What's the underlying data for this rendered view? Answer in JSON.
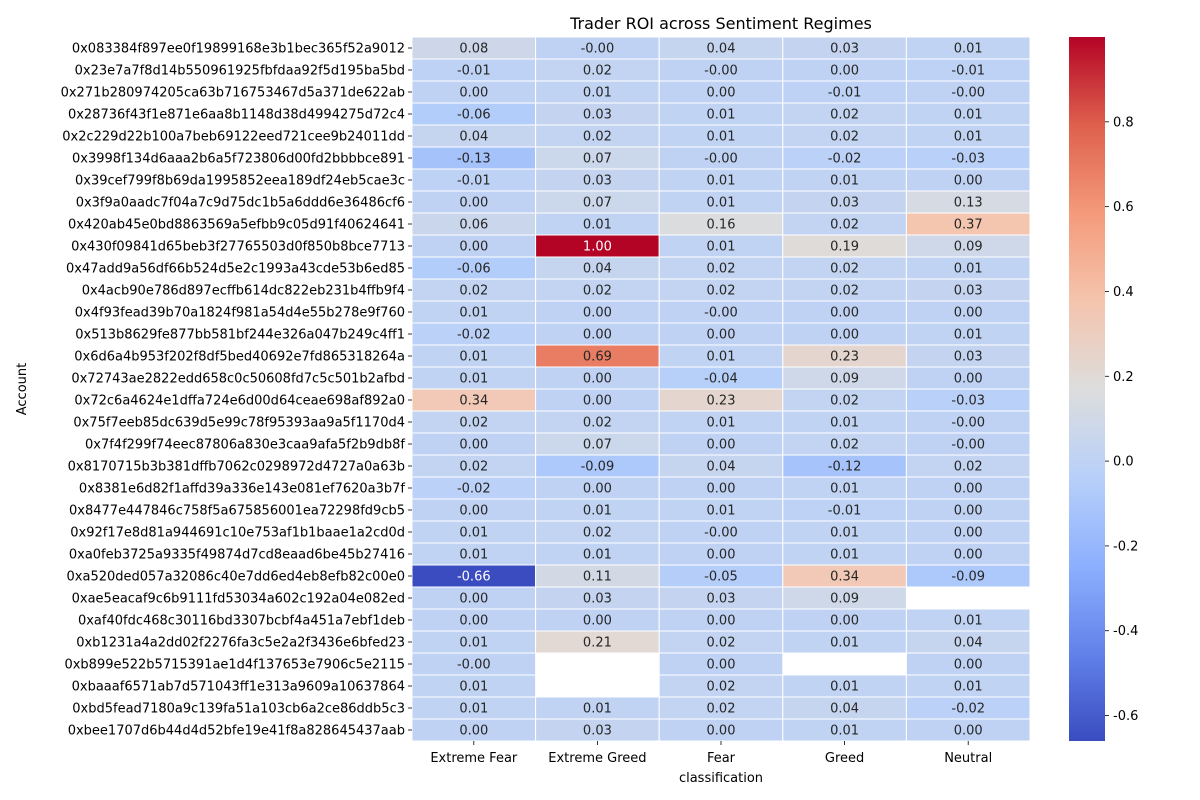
{
  "chart_data": {
    "type": "heatmap",
    "title": "Trader ROI across Sentiment Regimes",
    "xlabel": "classification",
    "ylabel": "Account",
    "colormap": "coolwarm",
    "color_range": [
      -0.66,
      1.0
    ],
    "colorbar_ticks": [
      "0.8",
      "0.6",
      "0.4",
      "0.2",
      "0.0",
      "-0.2",
      "-0.4",
      "-0.6"
    ],
    "colorbar_tick_values": [
      0.8,
      0.6,
      0.4,
      0.2,
      0.0,
      -0.2,
      -0.4,
      -0.6
    ],
    "columns": [
      "Extreme Fear",
      "Extreme Greed",
      "Fear",
      "Greed",
      "Neutral"
    ],
    "rows": [
      "0x083384f897ee0f19899168e3b1bec365f52a9012",
      "0x23e7a7f8d14b550961925fbfdaa92f5d195ba5bd",
      "0x271b280974205ca63b716753467d5a371de622ab",
      "0x28736f43f1e871e6aa8b1148d38d4994275d72c4",
      "0x2c229d22b100a7beb69122eed721cee9b24011dd",
      "0x3998f134d6aaa2b6a5f723806d00fd2bbbbce891",
      "0x39cef799f8b69da1995852eea189df24eb5cae3c",
      "0x3f9a0aadc7f04a7c9d75dc1b5a6ddd6e36486cf6",
      "0x420ab45e0bd8863569a5efbb9c05d91f40624641",
      "0x430f09841d65beb3f27765503d0f850b8bce7713",
      "0x47add9a56df66b524d5e2c1993a43cde53b6ed85",
      "0x4acb90e786d897ecffb614dc822eb231b4ffb9f4",
      "0x4f93fead39b70a1824f981a54d4e55b278e9f760",
      "0x513b8629fe877bb581bf244e326a047b249c4ff1",
      "0x6d6a4b953f202f8df5bed40692e7fd865318264a",
      "0x72743ae2822edd658c0c50608fd7c5c501b2afbd",
      "0x72c6a4624e1dffa724e6d00d64ceae698af892a0",
      "0x75f7eeb85dc639d5e99c78f95393aa9a5f1170d4",
      "0x7f4f299f74eec87806a830e3caa9afa5f2b9db8f",
      "0x8170715b3b381dffb7062c0298972d4727a0a63b",
      "0x8381e6d82f1affd39a336e143e081ef7620a3b7f",
      "0x8477e447846c758f5a675856001ea72298fd9cb5",
      "0x92f17e8d81a944691c10e753af1b1baae1a2cd0d",
      "0xa0feb3725a9335f49874d7cd8eaad6be45b27416",
      "0xa520ded057a32086c40e7dd6ed4eb8efb82c00e0",
      "0xae5eacaf9c6b9111fd53034a602c192a04e082ed",
      "0xaf40fdc468c30116bd3307bcbf4a451a7ebf1deb",
      "0xb1231a4a2dd02f2276fa3c5e2a2f3436e6bfed23",
      "0xb899e522b5715391ae1d4f137653e7906c5e2115",
      "0xbaaaf6571ab7d571043ff1e313a9609a10637864",
      "0xbd5fead7180a9c139fa51a103cb6a2ce86ddb5c3",
      "0xbee1707d6b44d4d52bfe19e41f8a828645437aab"
    ],
    "labels": [
      [
        "0.08",
        "-0.00",
        "0.04",
        "0.03",
        "0.01"
      ],
      [
        "-0.01",
        "0.02",
        "-0.00",
        "0.00",
        "-0.01"
      ],
      [
        "0.00",
        "0.01",
        "0.00",
        "-0.01",
        "-0.00"
      ],
      [
        "-0.06",
        "0.03",
        "0.01",
        "0.02",
        "0.01"
      ],
      [
        "0.04",
        "0.02",
        "0.01",
        "0.02",
        "0.01"
      ],
      [
        "-0.13",
        "0.07",
        "-0.00",
        "-0.02",
        "-0.03"
      ],
      [
        "-0.01",
        "0.03",
        "0.01",
        "0.01",
        "0.00"
      ],
      [
        "0.00",
        "0.07",
        "0.01",
        "0.03",
        "0.13"
      ],
      [
        "0.06",
        "0.01",
        "0.16",
        "0.02",
        "0.37"
      ],
      [
        "0.00",
        "1.00",
        "0.01",
        "0.19",
        "0.09"
      ],
      [
        "-0.06",
        "0.04",
        "0.02",
        "0.02",
        "0.01"
      ],
      [
        "0.02",
        "0.02",
        "0.02",
        "0.02",
        "0.03"
      ],
      [
        "0.01",
        "0.00",
        "-0.00",
        "0.00",
        "0.00"
      ],
      [
        "-0.02",
        "0.00",
        "0.00",
        "0.00",
        "0.01"
      ],
      [
        "0.01",
        "0.69",
        "0.01",
        "0.23",
        "0.03"
      ],
      [
        "0.01",
        "0.00",
        "-0.04",
        "0.09",
        "0.00"
      ],
      [
        "0.34",
        "0.00",
        "0.23",
        "0.02",
        "-0.03"
      ],
      [
        "0.02",
        "0.02",
        "0.01",
        "0.01",
        "-0.00"
      ],
      [
        "0.00",
        "0.07",
        "0.00",
        "0.02",
        "-0.00"
      ],
      [
        "0.02",
        "-0.09",
        "0.04",
        "-0.12",
        "0.02"
      ],
      [
        "-0.02",
        "0.00",
        "0.00",
        "0.01",
        "0.00"
      ],
      [
        "0.00",
        "0.01",
        "0.01",
        "-0.01",
        "0.00"
      ],
      [
        "0.01",
        "0.02",
        "-0.00",
        "0.01",
        "0.00"
      ],
      [
        "0.01",
        "0.01",
        "0.00",
        "0.01",
        "0.00"
      ],
      [
        "-0.66",
        "0.11",
        "-0.05",
        "0.34",
        "-0.09"
      ],
      [
        "0.00",
        "0.03",
        "0.03",
        "0.09",
        null
      ],
      [
        "0.00",
        "0.00",
        "0.00",
        "0.00",
        "0.01"
      ],
      [
        "0.01",
        "0.21",
        "0.02",
        "0.01",
        "0.04"
      ],
      [
        "-0.00",
        null,
        "0.00",
        null,
        "0.00"
      ],
      [
        "0.01",
        null,
        "0.02",
        "0.01",
        "0.01"
      ],
      [
        "0.01",
        "0.01",
        "0.02",
        "0.04",
        "-0.02"
      ],
      [
        "0.00",
        "0.03",
        "0.00",
        "0.01",
        "0.00"
      ]
    ]
  }
}
